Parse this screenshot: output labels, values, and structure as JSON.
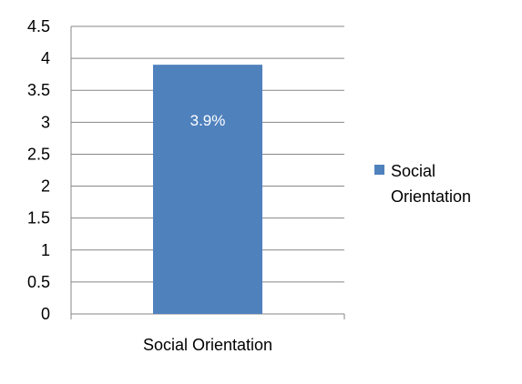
{
  "chart_data": {
    "type": "bar",
    "categories": [
      "Social Orientation"
    ],
    "series": [
      {
        "name": "Social Orientation",
        "values": [
          3.9
        ],
        "data_labels": [
          "3.9%"
        ],
        "color": "#4F81BD"
      }
    ],
    "y_ticks": [
      "0",
      "0.5",
      "1",
      "1.5",
      "2",
      "2.5",
      "3",
      "3.5",
      "4",
      "4.5"
    ],
    "ylim": [
      0,
      4.5
    ],
    "grid": true,
    "legend": {
      "position": "right",
      "lines": [
        "Social",
        "Orientation"
      ]
    }
  }
}
